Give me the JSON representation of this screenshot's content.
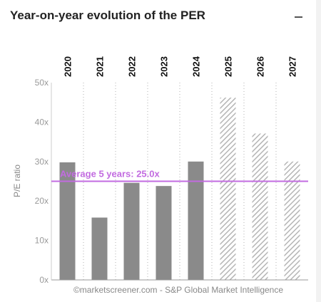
{
  "header": {
    "title": "Year-on-year evolution of the PER",
    "collapse_icon": "minus-icon"
  },
  "chart_data": {
    "type": "bar",
    "title": "",
    "categories": [
      "2020",
      "2021",
      "2022",
      "2023",
      "2024",
      "2025",
      "2026",
      "2027"
    ],
    "values": [
      29.8,
      15.8,
      24.6,
      23.8,
      30.0,
      46.2,
      37.1,
      30.0
    ],
    "estimated": [
      false,
      false,
      false,
      false,
      false,
      true,
      true,
      true
    ],
    "ylabel": "P/E ratio",
    "ylim": [
      0,
      50
    ],
    "yticks": [
      "0x",
      "10x",
      "20x",
      "30x",
      "40x",
      "50x"
    ],
    "average": {
      "value": 25.0,
      "label": "Average 5 years: 25.0x"
    },
    "colors": {
      "bar": "#8a8a8a",
      "hatch": "#b5b5b5",
      "average": "#c26be0"
    },
    "grid": "vertical-dotted"
  },
  "footer": {
    "credit": "©marketscreener.com - S&P Global Market Intelligence"
  }
}
